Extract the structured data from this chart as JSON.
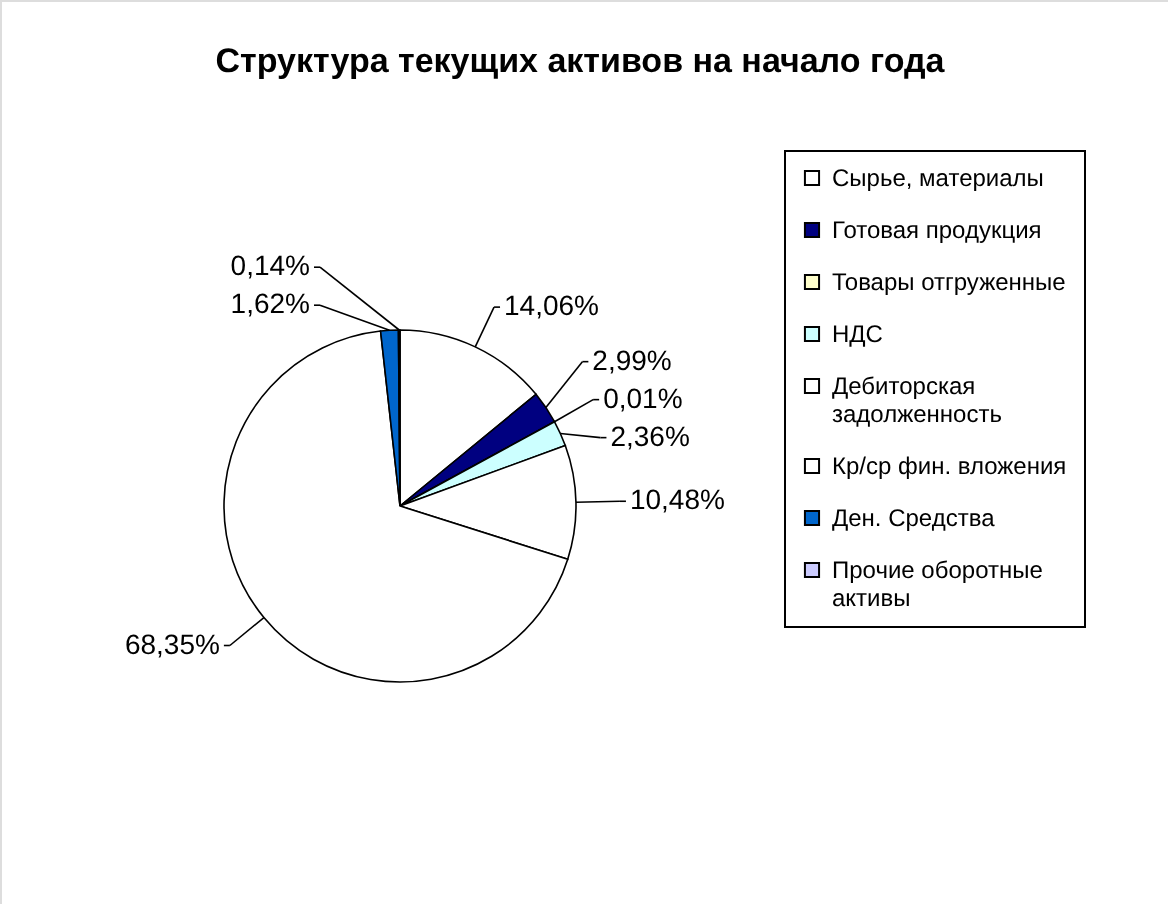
{
  "chart_data": {
    "type": "pie",
    "title": "Структура текущих активов на начало года",
    "categories": [
      "Сырье, материалы",
      "Готовая продукция",
      "Товары отгруженные",
      "НДС",
      "Дебиторская задолженность",
      "Кр/ср фин. вложения",
      "Ден. Средства",
      "Прочие оборотные активы"
    ],
    "values": [
      14.06,
      2.99,
      0.01,
      2.36,
      10.48,
      68.35,
      1.62,
      0.14
    ],
    "value_labels": [
      "14,06%",
      "2,99%",
      "0,01%",
      "2,36%",
      "10,48%",
      "68,35%",
      "1,62%",
      "0,14%"
    ],
    "colors": [
      "#ffffff",
      "#000080",
      "#ffffcc",
      "#ccffff",
      "#ffffff",
      "#ffffff",
      "#0066cc",
      "#ccccff"
    ],
    "legend": "right"
  }
}
